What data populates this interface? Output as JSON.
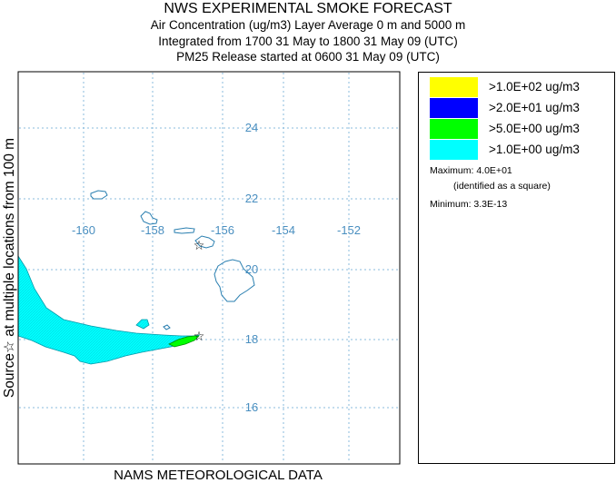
{
  "header": {
    "title": "NWS EXPERIMENTAL SMOKE FORECAST",
    "line2": "Air Concentration (ug/m3) Layer Average    0 m and  5000 m",
    "line3": "Integrated from 1700 31 May to 1800 31 May 09 (UTC)",
    "line4": "PM25 Release started at 0600 31 May 09 (UTC)"
  },
  "side_label": "Source☆ at multiple locations   from  100 m",
  "footer": "NAMS METEOROLOGICAL DATA",
  "map": {
    "lon_labels": [
      "-160",
      "-158",
      "-156",
      "-154",
      "-152"
    ],
    "lat_labels": [
      "24",
      "22",
      "20",
      "18",
      "16"
    ],
    "grid_color": "#88bbdd",
    "label_color": "#4a8fc0",
    "coast_color": "#2a7fb0",
    "source_icon": "star-icon",
    "plume_colors": {
      "cyan": "#00ffff",
      "green": "#00ff00"
    }
  },
  "legend": {
    "items": [
      {
        "label": ">1.0E+02 ug/m3",
        "color": "#ffff00"
      },
      {
        "label": ">2.0E+01 ug/m3",
        "color": "#0000ff"
      },
      {
        "label": ">5.0E+00 ug/m3",
        "color": "#00ff00"
      },
      {
        "label": ">1.0E+00 ug/m3",
        "color": "#00ffff"
      }
    ],
    "maximum": "Maximum: 4.0E+01",
    "maximum_note": "(identified as a square)",
    "minimum": "Minimum: 3.3E-13"
  }
}
